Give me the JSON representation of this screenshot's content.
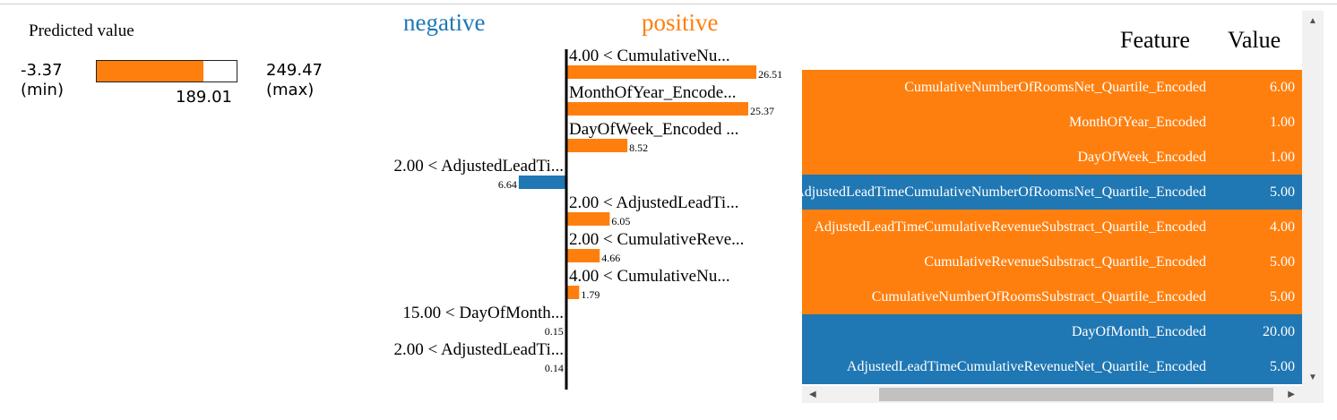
{
  "predicted": {
    "title": "Predicted value",
    "min": "-3.37",
    "max": "249.47",
    "min_label": "(min)",
    "max_label": "(max)",
    "value": "189.01",
    "fraction": 0.7616
  },
  "colors": {
    "negative": "#1f77b4",
    "positive": "#ff7f0e"
  },
  "chart_data": {
    "type": "bar",
    "orientation": "horizontal",
    "title_negative": "negative",
    "title_positive": "positive",
    "bars": [
      {
        "label": "4.00 < CumulativeNu...",
        "value": 26.51,
        "sign": "positive"
      },
      {
        "label": "MonthOfYear_Encode...",
        "value": 25.37,
        "sign": "positive"
      },
      {
        "label": "DayOfWeek_Encoded ...",
        "value": 8.52,
        "sign": "positive"
      },
      {
        "label": "2.00 < AdjustedLeadTi...",
        "value": 6.64,
        "sign": "negative"
      },
      {
        "label": "2.00 < AdjustedLeadTi...",
        "value": 6.05,
        "sign": "positive"
      },
      {
        "label": "2.00 < CumulativeReve...",
        "value": 4.66,
        "sign": "positive"
      },
      {
        "label": "4.00 < CumulativeNu...",
        "value": 1.79,
        "sign": "positive"
      },
      {
        "label": "15.00 < DayOfMonth...",
        "value": 0.15,
        "sign": "negative"
      },
      {
        "label": "2.00 < AdjustedLeadTi...",
        "value": 0.14,
        "sign": "negative"
      }
    ],
    "value_labels": [
      "26.51",
      "25.37",
      "8.52",
      "6.64",
      "6.05",
      "4.66",
      "1.79",
      "0.15",
      "0.14"
    ]
  },
  "table": {
    "header_feature": "Feature",
    "header_value": "Value",
    "rows": [
      {
        "feature": "CumulativeNumberOfRoomsNet_Quartile_Encoded",
        "value": "6.00",
        "sign": "positive"
      },
      {
        "feature": "MonthOfYear_Encoded",
        "value": "1.00",
        "sign": "positive"
      },
      {
        "feature": "DayOfWeek_Encoded",
        "value": "1.00",
        "sign": "positive"
      },
      {
        "feature": "AdjustedLeadTimeCumulativeNumberOfRoomsNet_Quartile_Encoded",
        "value": "5.00",
        "sign": "negative"
      },
      {
        "feature": "AdjustedLeadTimeCumulativeRevenueSubstract_Quartile_Encoded",
        "value": "4.00",
        "sign": "positive"
      },
      {
        "feature": "CumulativeRevenueSubstract_Quartile_Encoded",
        "value": "5.00",
        "sign": "positive"
      },
      {
        "feature": "CumulativeNumberOfRoomsSubstract_Quartile_Encoded",
        "value": "5.00",
        "sign": "positive"
      },
      {
        "feature": "DayOfMonth_Encoded",
        "value": "20.00",
        "sign": "negative"
      },
      {
        "feature": "AdjustedLeadTimeCumulativeRevenueNet_Quartile_Encoded",
        "value": "5.00",
        "sign": "negative"
      }
    ]
  },
  "scroll_icons": {
    "up": "scroll-up-arrow-icon",
    "down": "scroll-down-arrow-icon",
    "left": "scroll-left-arrow-icon",
    "right": "scroll-right-arrow-icon"
  }
}
